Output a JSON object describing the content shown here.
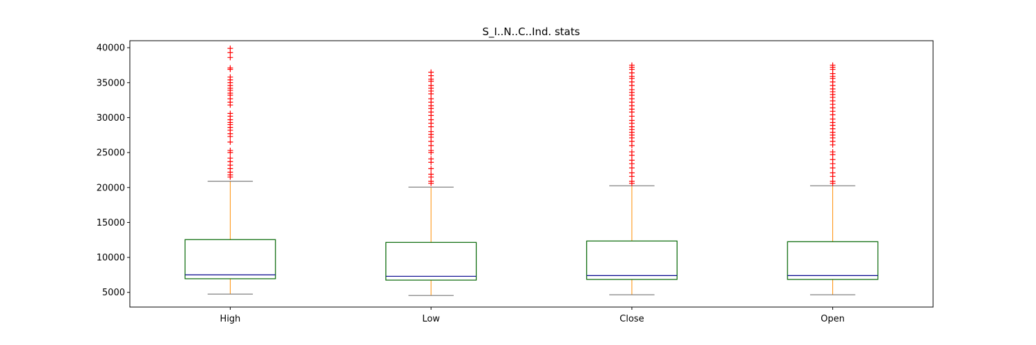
{
  "chart_data": {
    "type": "box",
    "title": "S_I..N..C..Ind. stats",
    "xlabel": "",
    "ylabel": "",
    "categories": [
      "High",
      "Low",
      "Close",
      "Open"
    ],
    "ylim": [
      2900,
      41000
    ],
    "yticks": [
      5000,
      10000,
      15000,
      20000,
      25000,
      30000,
      35000,
      40000
    ],
    "grid": false,
    "colors": {
      "box": "#006400",
      "median": "#00008b",
      "whisker": "#ff8c00",
      "cap": "#808080",
      "outlier": "#ff0000"
    },
    "boxes": [
      {
        "name": "High",
        "whislo": 4750,
        "q1": 6950,
        "median": 7500,
        "q3": 12550,
        "whishi": 20900,
        "fliers": [
          21500,
          21800,
          22200,
          22700,
          23200,
          23700,
          24200,
          25000,
          25300,
          26500,
          27300,
          27700,
          28200,
          28600,
          29000,
          29300,
          29700,
          30200,
          30600,
          31800,
          32200,
          32700,
          33200,
          33500,
          33900,
          34200,
          34600,
          35000,
          35400,
          35800,
          36900,
          37100,
          38600,
          39300,
          39900
        ]
      },
      {
        "name": "Low",
        "whislo": 4550,
        "q1": 6750,
        "median": 7300,
        "q3": 12150,
        "whishi": 20050,
        "fliers": [
          20600,
          20900,
          21500,
          21900,
          22700,
          23600,
          24100,
          25000,
          25300,
          26000,
          26600,
          27200,
          27600,
          28000,
          28700,
          29200,
          29700,
          30300,
          30800,
          31300,
          31700,
          32200,
          32700,
          33400,
          33800,
          34200,
          34600,
          35200,
          35500,
          36000,
          36500
        ]
      },
      {
        "name": "Close",
        "whislo": 4650,
        "q1": 6850,
        "median": 7400,
        "q3": 12350,
        "whishi": 20250,
        "fliers": [
          20600,
          20900,
          21600,
          22100,
          22800,
          23400,
          23900,
          24600,
          25100,
          26000,
          26600,
          27100,
          27500,
          27900,
          28300,
          28700,
          29200,
          29600,
          30200,
          30800,
          31200,
          31700,
          32200,
          32700,
          33200,
          33600,
          34000,
          34600,
          35100,
          35600,
          35900,
          36400,
          36900,
          37200,
          37500
        ]
      },
      {
        "name": "Open",
        "whislo": 4650,
        "q1": 6850,
        "median": 7400,
        "q3": 12250,
        "whishi": 20250,
        "fliers": [
          20600,
          20900,
          21600,
          22100,
          22800,
          23400,
          24000,
          24700,
          25100,
          26100,
          26600,
          27100,
          27500,
          27900,
          28400,
          28900,
          29300,
          29800,
          30400,
          30900,
          31400,
          31900,
          32400,
          32900,
          33300,
          33700,
          34100,
          34600,
          35100,
          35600,
          35900,
          36300,
          36900,
          37200,
          37500
        ]
      }
    ]
  }
}
